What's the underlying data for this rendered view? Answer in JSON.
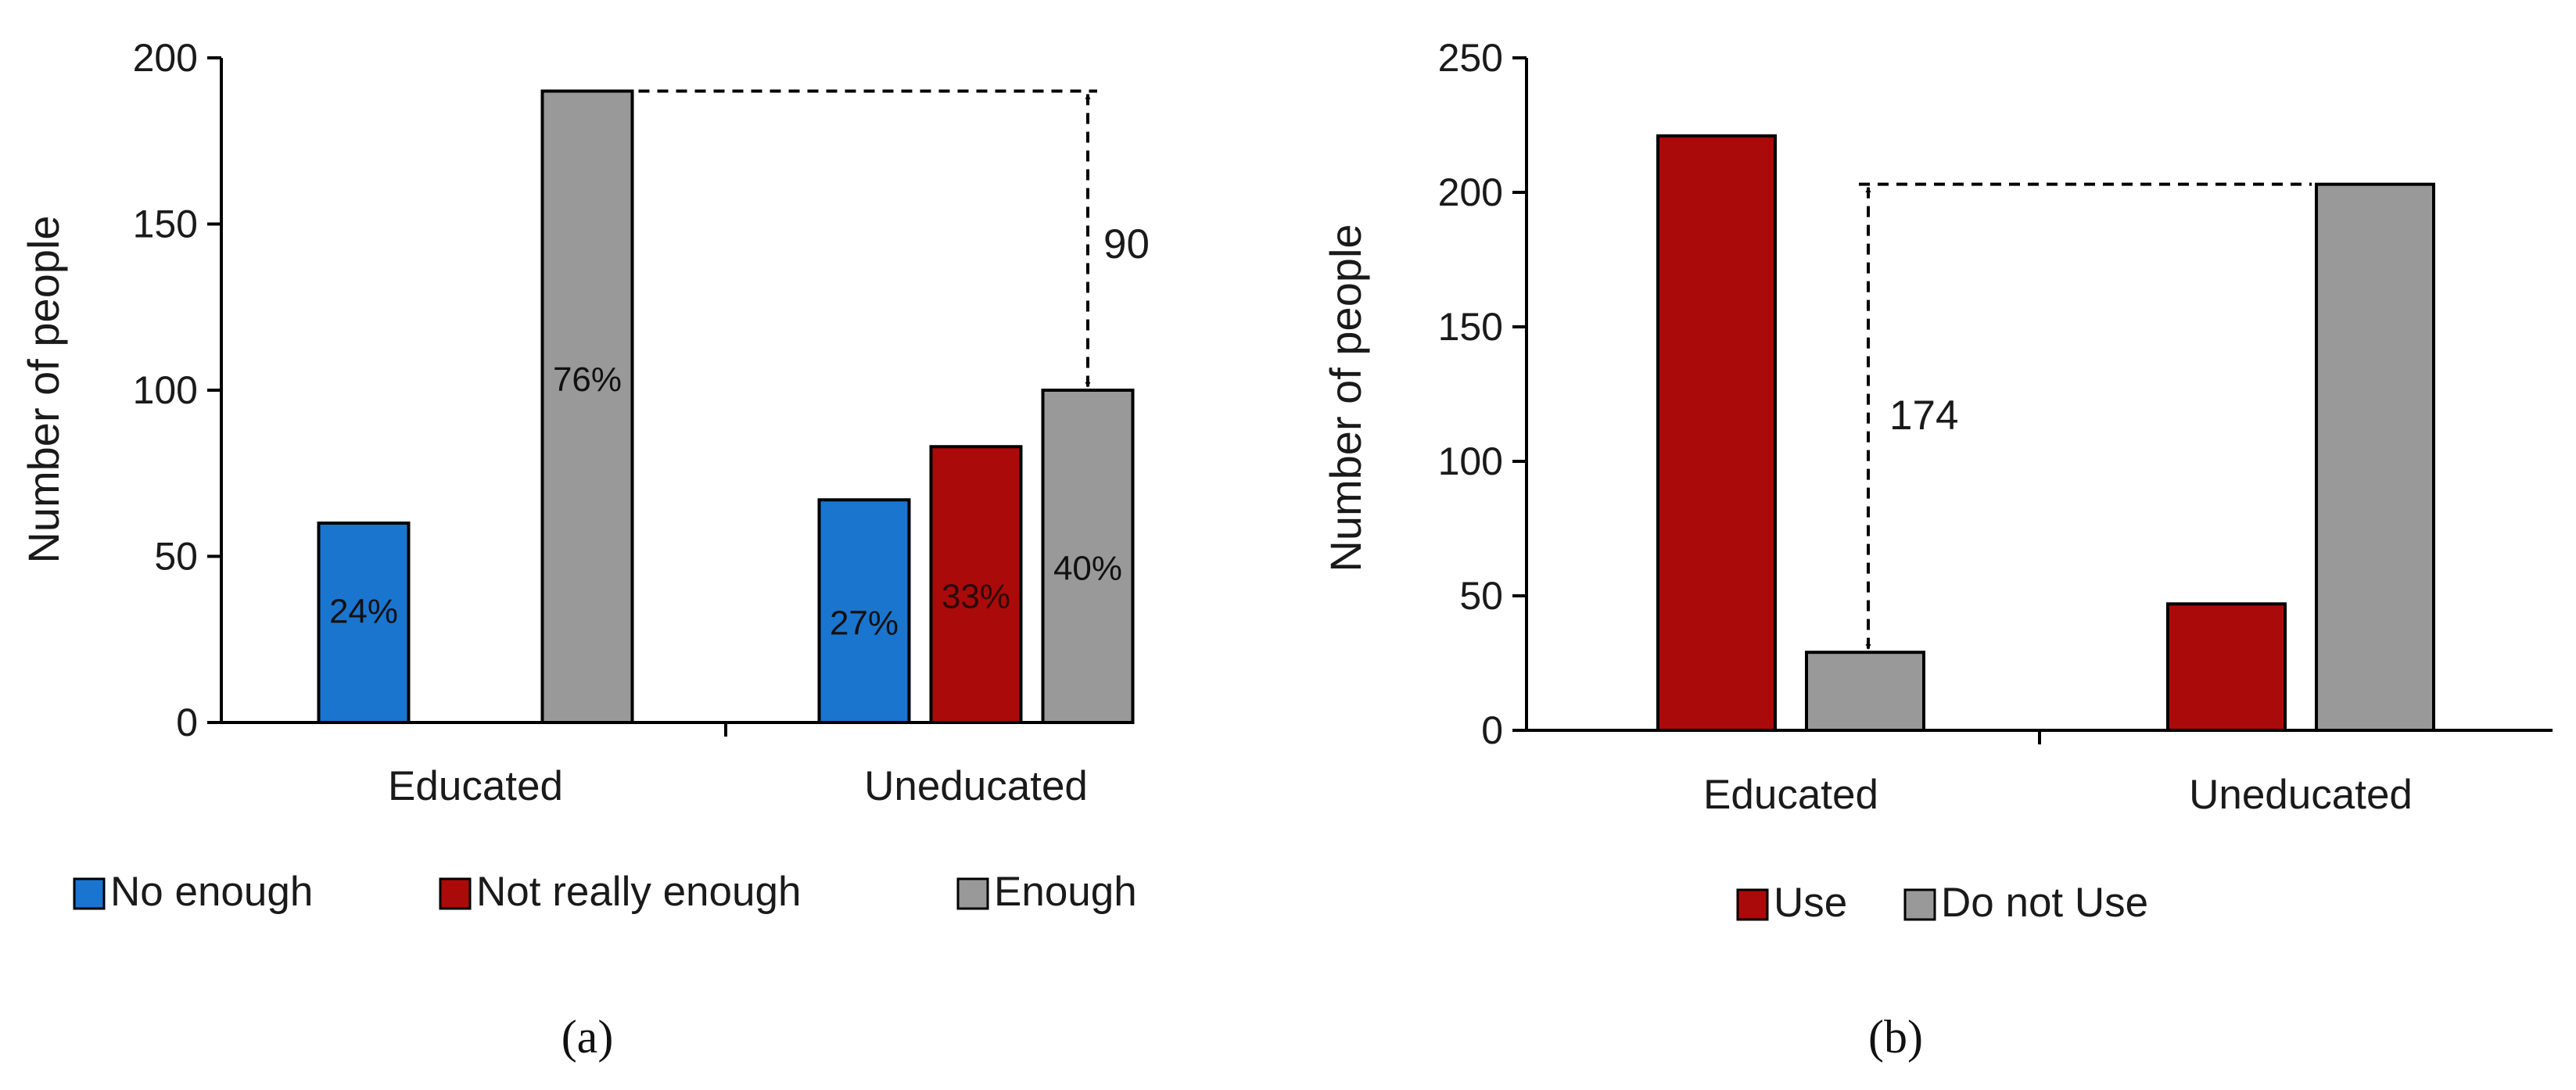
{
  "chart_data": [
    {
      "type": "bar",
      "panel": "a",
      "caption": "(a)",
      "ylabel": "Number of people",
      "xlabel": "",
      "ylim": [
        0,
        200
      ],
      "yticks": [
        0,
        50,
        100,
        150,
        200
      ],
      "categories": [
        "Educated",
        "Uneducated"
      ],
      "series": [
        {
          "name": "No enough",
          "color": "#1a75cf",
          "values": [
            60,
            67
          ],
          "labels": [
            "24%",
            "27%"
          ],
          "label_color": "#111111"
        },
        {
          "name": "Not really enough",
          "color": "#ab0a0a",
          "values": [
            0,
            83
          ],
          "labels": [
            "",
            "33%"
          ],
          "label_color": "#2a0a0a"
        },
        {
          "name": "Enough",
          "color": "#999999",
          "values": [
            190,
            100
          ],
          "labels": [
            "76%",
            "40%"
          ],
          "label_color": "#111111"
        }
      ],
      "annotation": {
        "text": "90",
        "from": 190,
        "to": 100
      },
      "legend_position": "bottom"
    },
    {
      "type": "bar",
      "panel": "b",
      "caption": "(b)",
      "ylabel": "Number of people",
      "xlabel": "",
      "ylim": [
        0,
        250
      ],
      "yticks": [
        0,
        50,
        100,
        150,
        200,
        250
      ],
      "categories": [
        "Educated",
        "Uneducated"
      ],
      "series": [
        {
          "name": "Use",
          "color": "#ab0a0a",
          "values": [
            221,
            47
          ]
        },
        {
          "name": "Do not Use",
          "color": "#999999",
          "values": [
            29,
            203
          ]
        }
      ],
      "annotation": {
        "text": "174",
        "from": 203,
        "to": 29
      },
      "legend_position": "bottom"
    }
  ]
}
